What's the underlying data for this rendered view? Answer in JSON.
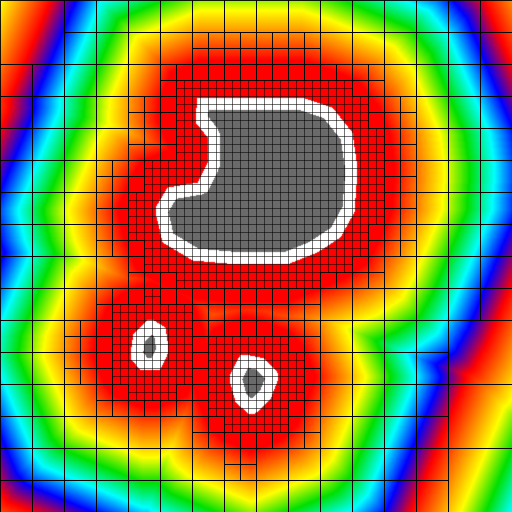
{
  "view": {
    "kind": "distance-field-quadtree",
    "colormap": [
      "#ff0000",
      "#ff8000",
      "#ffff00",
      "#00e000",
      "#00ffff",
      "#0000ff",
      "#ff0000"
    ],
    "obstacle_fill": "#6a6a6a",
    "boundary_band": "#ffffff",
    "grid_line_color": "#000000",
    "obstacle_count": 3,
    "grid": "on"
  }
}
